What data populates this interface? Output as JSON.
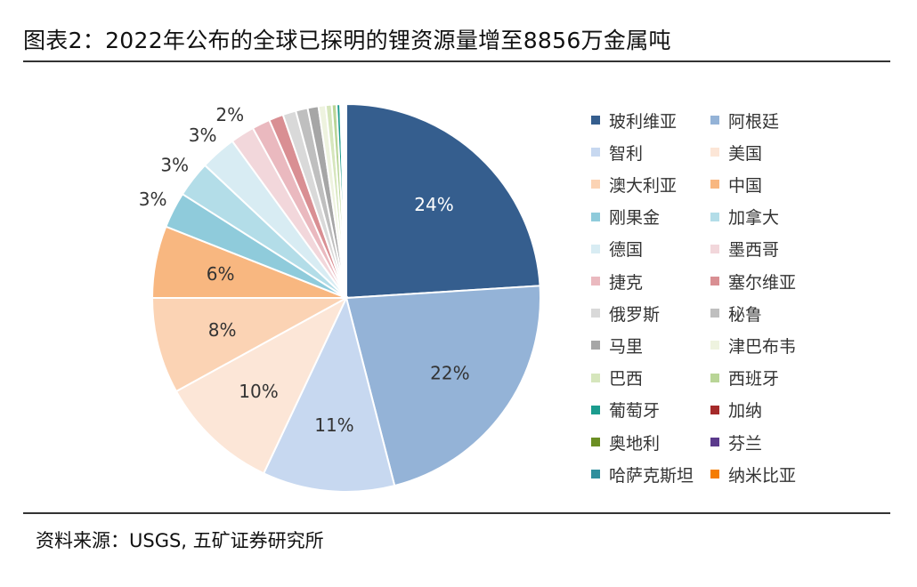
{
  "title": "图表2：2022年公布的全球已探明的锂资源量增至8856万金属吨",
  "source": "资料来源：USGS, 五矿证券研究所",
  "chart_data": {
    "type": "pie",
    "title": "",
    "start_angle_deg": 0,
    "direction": "clockwise",
    "slices": [
      {
        "label": "玻利维亚",
        "value": 24,
        "data_label": "24%",
        "color": "#355E8E"
      },
      {
        "label": "阿根廷",
        "value": 22,
        "data_label": "22%",
        "color": "#94B3D7"
      },
      {
        "label": "智利",
        "value": 11,
        "data_label": "11%",
        "color": "#C7D8F0"
      },
      {
        "label": "美国",
        "value": 10,
        "data_label": "10%",
        "color": "#FCE6D7"
      },
      {
        "label": "澳大利亚",
        "value": 8,
        "data_label": "8%",
        "color": "#FBD3B4"
      },
      {
        "label": "中国",
        "value": 6,
        "data_label": "6%",
        "color": "#F8B780"
      },
      {
        "label": "刚果金",
        "value": 3,
        "data_label": "3%",
        "color": "#8FCBDB"
      },
      {
        "label": "加拿大",
        "value": 3,
        "data_label": "3%",
        "color": "#B3DDE8"
      },
      {
        "label": "德国",
        "value": 3,
        "data_label": "3%",
        "color": "#D8ECF3"
      },
      {
        "label": "墨西哥",
        "value": 2,
        "data_label": "2%",
        "color": "#F2D7DB"
      },
      {
        "label": "捷克",
        "value": 1.5,
        "data_label": "",
        "color": "#EAB9BF"
      },
      {
        "label": "塞尔维亚",
        "value": 1.2,
        "data_label": "",
        "color": "#D98F93"
      },
      {
        "label": "俄罗斯",
        "value": 1.1,
        "data_label": "",
        "color": "#D9D9D9"
      },
      {
        "label": "秘鲁",
        "value": 1.0,
        "data_label": "",
        "color": "#BFBFBF"
      },
      {
        "label": "马里",
        "value": 0.9,
        "data_label": "",
        "color": "#A6A6A6"
      },
      {
        "label": "津巴布韦",
        "value": 0.6,
        "data_label": "",
        "color": "#EEF3DF"
      },
      {
        "label": "巴西",
        "value": 0.5,
        "data_label": "",
        "color": "#D6E6BC"
      },
      {
        "label": "西班牙",
        "value": 0.4,
        "data_label": "",
        "color": "#B9D597"
      },
      {
        "label": "葡萄牙",
        "value": 0.3,
        "data_label": "",
        "color": "#1B9C8E"
      },
      {
        "label": "加纳",
        "value": 0.1,
        "data_label": "",
        "color": "#A52A2A"
      },
      {
        "label": "奥地利",
        "value": 0.1,
        "data_label": "",
        "color": "#6B8E23"
      },
      {
        "label": "芬兰",
        "value": 0.1,
        "data_label": "",
        "color": "#5B3A8C"
      },
      {
        "label": "哈萨克斯坦",
        "value": 0.1,
        "data_label": "",
        "color": "#2F8F9D"
      },
      {
        "label": "纳米比亚",
        "value": 0.1,
        "data_label": "",
        "color": "#F57C00"
      }
    ],
    "legend_position": "right"
  }
}
